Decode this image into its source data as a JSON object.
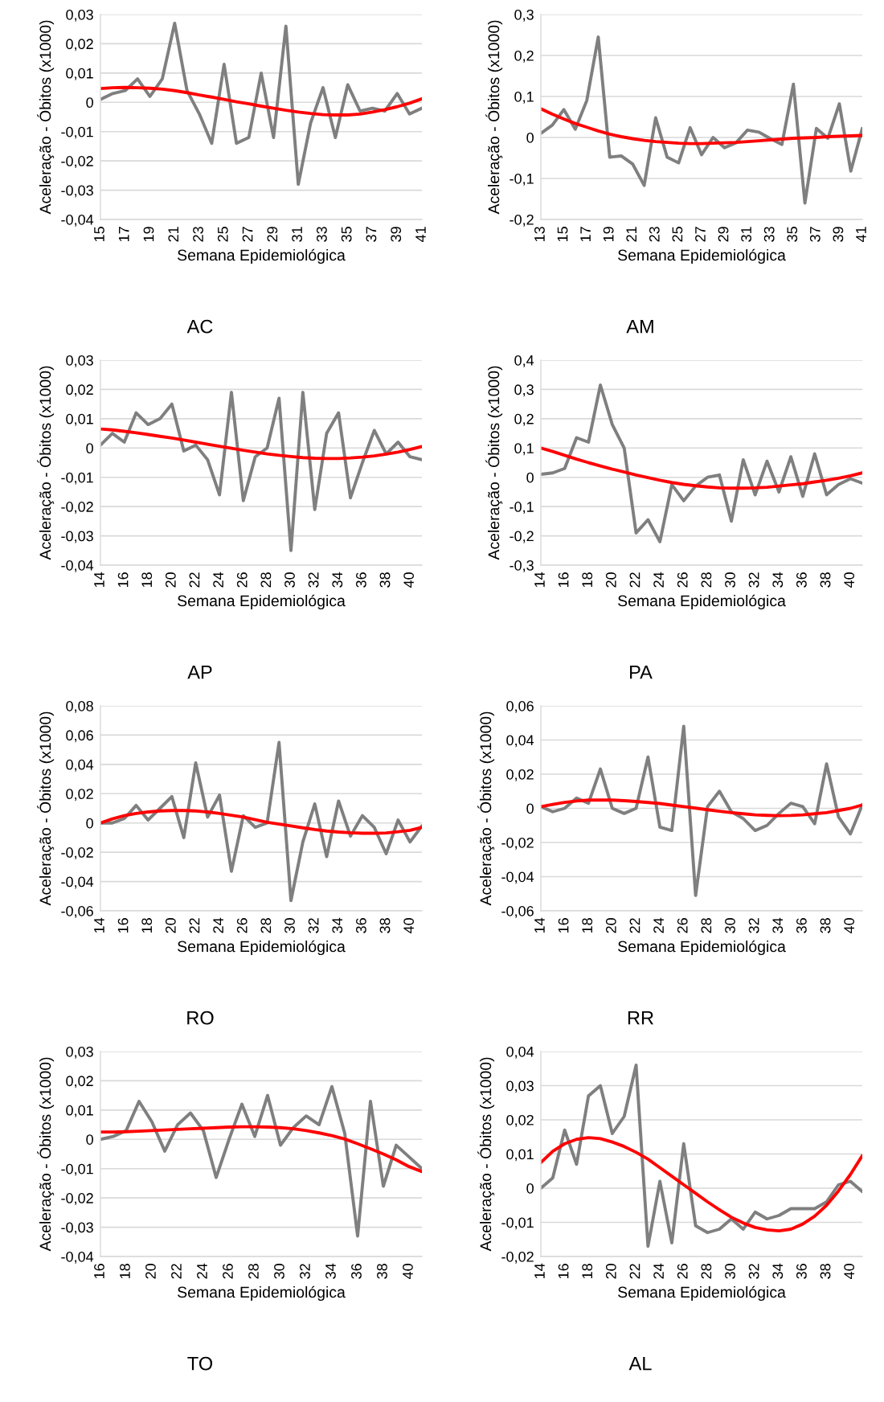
{
  "chart_data": [
    {
      "type": "line",
      "title": "AC",
      "xlabel": "Semana Epidemiológica",
      "ylabel": "Aceleração - Óbitos (x1000)",
      "grid": "y",
      "categories": [
        "15",
        null,
        "17",
        null,
        "19",
        null,
        "21",
        null,
        "23",
        null,
        "25",
        null,
        "27",
        null,
        "29",
        null,
        "31",
        null,
        "33",
        null,
        "35",
        null,
        "37",
        null,
        "39",
        null,
        "41"
      ],
      "ylim": [
        -0.04,
        0.03
      ],
      "yticks": [
        {
          "value": -0.04,
          "label": "-0,04"
        },
        {
          "value": -0.03,
          "label": "-0,03"
        },
        {
          "value": -0.02,
          "label": "-0,02"
        },
        {
          "value": -0.01,
          "label": "-0,01"
        },
        0,
        {
          "value": 0.01,
          "label": "0,01"
        },
        {
          "value": 0.02,
          "label": "0,02"
        },
        {
          "value": 0.03,
          "label": "0,03"
        }
      ],
      "series": [
        {
          "color": "#7f7f7f",
          "values": [
            0.001,
            0.003,
            0.004,
            0.008,
            0.002,
            0.008,
            0.027,
            0.004,
            -0.004,
            -0.014,
            0.013,
            -0.014,
            -0.012,
            0.01,
            -0.012,
            0.026,
            -0.028,
            -0.007,
            0.005,
            -0.012,
            0.006,
            -0.003,
            -0.002,
            -0.003,
            0.003,
            -0.004,
            -0.002
          ]
        },
        {
          "type": "line",
          "color": "#ff0000",
          "values": [
            0.0047,
            0.005,
            0.0051,
            0.005,
            0.0048,
            0.0045,
            0.004,
            0.0033,
            0.0025,
            0.0018,
            0.001,
            0.0002,
            -0.0005,
            -0.0013,
            -0.002,
            -0.0027,
            -0.0033,
            -0.0038,
            -0.0042,
            -0.0043,
            -0.0043,
            -0.004,
            -0.0033,
            -0.0025,
            -0.0015,
            -0.0003,
            0.0012
          ]
        }
      ]
    },
    {
      "type": "line",
      "title": "AM",
      "xlabel": "Semana Epidemiológica",
      "ylabel": "Aceleração - Óbitos (x1000)",
      "grid": "y",
      "categories": [
        "13",
        null,
        "15",
        null,
        "17",
        null,
        "19",
        null,
        "21",
        null,
        "23",
        null,
        "25",
        null,
        "27",
        null,
        "29",
        null,
        "31",
        null,
        "33",
        null,
        "35",
        null,
        "37",
        null,
        "39",
        null,
        "41"
      ],
      "ylim": [
        -0.2,
        0.3
      ],
      "yticks": [
        {
          "value": -0.2,
          "label": "-0,2"
        },
        {
          "value": -0.1,
          "label": "-0,1"
        },
        0,
        {
          "value": 0.1,
          "label": "0,1"
        },
        {
          "value": 0.2,
          "label": "0,2"
        },
        {
          "value": 0.3,
          "label": "0,3"
        }
      ],
      "series": [
        {
          "color": "#7f7f7f",
          "values": [
            0.01,
            0.03,
            0.068,
            0.02,
            0.09,
            0.245,
            -0.048,
            -0.045,
            -0.065,
            -0.117,
            0.048,
            -0.048,
            -0.062,
            0.024,
            -0.042,
            0.0,
            -0.025,
            -0.013,
            0.018,
            0.013,
            -0.003,
            -0.017,
            0.13,
            -0.16,
            0.022,
            -0.002,
            0.082,
            -0.082,
            0.022
          ]
        },
        {
          "type": "line",
          "color": "#ff0000",
          "values": [
            0.07,
            0.057,
            0.045,
            0.034,
            0.025,
            0.016,
            0.008,
            0.002,
            -0.003,
            -0.007,
            -0.01,
            -0.012,
            -0.014,
            -0.015,
            -0.015,
            -0.014,
            -0.013,
            -0.012,
            -0.01,
            -0.008,
            -0.006,
            -0.004,
            -0.002,
            -0.001,
            0.0,
            0.002,
            0.003,
            0.004,
            0.005
          ]
        }
      ]
    },
    {
      "type": "line",
      "title": "AP",
      "xlabel": "Semana Epidemiológica",
      "ylabel": "Aceleração - Óbitos (x1000)",
      "grid": "y",
      "categories": [
        "14",
        null,
        "16",
        null,
        "18",
        null,
        "20",
        null,
        "22",
        null,
        "24",
        null,
        "26",
        null,
        "28",
        null,
        "30",
        null,
        "32",
        null,
        "34",
        null,
        "36",
        null,
        "38",
        null,
        "40",
        null
      ],
      "ylim": [
        -0.04,
        0.03
      ],
      "yticks": [
        {
          "value": -0.04,
          "label": "-0,04"
        },
        {
          "value": -0.03,
          "label": "-0,03"
        },
        {
          "value": -0.02,
          "label": "-0,02"
        },
        {
          "value": -0.01,
          "label": "-0,01"
        },
        0,
        {
          "value": 0.01,
          "label": "0,01"
        },
        {
          "value": 0.02,
          "label": "0,02"
        },
        {
          "value": 0.03,
          "label": "0,03"
        }
      ],
      "series": [
        {
          "color": "#7f7f7f",
          "values": [
            0.001,
            0.005,
            0.002,
            0.012,
            0.008,
            0.01,
            0.015,
            -0.001,
            0.001,
            -0.004,
            -0.016,
            0.019,
            -0.018,
            -0.003,
            0.0,
            0.017,
            -0.035,
            0.019,
            -0.021,
            0.005,
            0.012,
            -0.017,
            -0.005,
            0.006,
            -0.002,
            0.002,
            -0.003,
            -0.004
          ]
        },
        {
          "type": "line",
          "color": "#ff0000",
          "values": [
            0.0065,
            0.0062,
            0.0057,
            0.0052,
            0.0046,
            0.004,
            0.0034,
            0.0027,
            0.002,
            0.0013,
            0.0006,
            -0.0001,
            -0.0008,
            -0.0014,
            -0.002,
            -0.0025,
            -0.0029,
            -0.0033,
            -0.0035,
            -0.0036,
            -0.0036,
            -0.0034,
            -0.0031,
            -0.0027,
            -0.0021,
            -0.0014,
            -0.0005,
            0.0005
          ]
        }
      ]
    },
    {
      "type": "line",
      "title": "PA",
      "xlabel": "Semana Epidemiológica",
      "ylabel": "Aceleração - Óbitos (x1000)",
      "grid": "y",
      "categories": [
        "14",
        null,
        "16",
        null,
        "18",
        null,
        "20",
        null,
        "22",
        null,
        "24",
        null,
        "26",
        null,
        "28",
        null,
        "30",
        null,
        "32",
        null,
        "34",
        null,
        "36",
        null,
        "38",
        null,
        "40",
        null
      ],
      "ylim": [
        -0.3,
        0.4
      ],
      "yticks": [
        {
          "value": -0.3,
          "label": "-0,3"
        },
        {
          "value": -0.2,
          "label": "-0,2"
        },
        {
          "value": -0.1,
          "label": "-0,1"
        },
        0,
        {
          "value": 0.1,
          "label": "0,1"
        },
        {
          "value": 0.2,
          "label": "0,2"
        },
        {
          "value": 0.3,
          "label": "0,3"
        },
        {
          "value": 0.4,
          "label": "0,4"
        }
      ],
      "series": [
        {
          "color": "#7f7f7f",
          "values": [
            0.01,
            0.015,
            0.03,
            0.135,
            0.12,
            0.315,
            0.18,
            0.1,
            -0.19,
            -0.145,
            -0.22,
            -0.025,
            -0.08,
            -0.03,
            0.0,
            0.008,
            -0.15,
            0.06,
            -0.06,
            0.055,
            -0.05,
            0.07,
            -0.065,
            0.08,
            -0.06,
            -0.025,
            -0.005,
            -0.02
          ]
        },
        {
          "type": "line",
          "color": "#ff0000",
          "values": [
            0.1,
            0.088,
            0.075,
            0.062,
            0.05,
            0.039,
            0.028,
            0.018,
            0.008,
            -0.001,
            -0.01,
            -0.018,
            -0.024,
            -0.029,
            -0.033,
            -0.036,
            -0.037,
            -0.037,
            -0.036,
            -0.034,
            -0.03,
            -0.026,
            -0.022,
            -0.016,
            -0.01,
            -0.003,
            0.005,
            0.015
          ]
        }
      ]
    },
    {
      "type": "line",
      "title": "RO",
      "xlabel": "Semana Epidemiológica",
      "ylabel": "Aceleração - Óbitos (x1000)",
      "grid": "y",
      "categories": [
        "14",
        null,
        "16",
        null,
        "18",
        null,
        "20",
        null,
        "22",
        null,
        "24",
        null,
        "26",
        null,
        "28",
        null,
        "30",
        null,
        "32",
        null,
        "34",
        null,
        "36",
        null,
        "38",
        null,
        "40",
        null
      ],
      "ylim": [
        -0.06,
        0.08
      ],
      "yticks": [
        {
          "value": -0.06,
          "label": "-0,06"
        },
        {
          "value": -0.04,
          "label": "-0,04"
        },
        {
          "value": -0.02,
          "label": "-0,02"
        },
        0,
        {
          "value": 0.02,
          "label": "0,02"
        },
        {
          "value": 0.04,
          "label": "0,04"
        },
        {
          "value": 0.06,
          "label": "0,06"
        },
        {
          "value": 0.08,
          "label": "0,08"
        }
      ],
      "series": [
        {
          "color": "#7f7f7f",
          "values": [
            0.0,
            0.0,
            0.003,
            0.012,
            0.002,
            0.01,
            0.018,
            -0.01,
            0.041,
            0.004,
            0.019,
            -0.033,
            0.005,
            -0.003,
            0.0,
            0.055,
            -0.053,
            -0.013,
            0.013,
            -0.023,
            0.015,
            -0.009,
            0.005,
            -0.003,
            -0.021,
            0.002,
            -0.013,
            -0.002
          ]
        },
        {
          "type": "line",
          "color": "#ff0000",
          "values": [
            0.0,
            0.0028,
            0.005,
            0.0065,
            0.0075,
            0.0082,
            0.0085,
            0.0085,
            0.0082,
            0.0075,
            0.0065,
            0.0053,
            0.004,
            0.0022,
            0.0005,
            -0.0008,
            -0.002,
            -0.0033,
            -0.0045,
            -0.0055,
            -0.0062,
            -0.0067,
            -0.007,
            -0.007,
            -0.0068,
            -0.006,
            -0.005,
            -0.003
          ]
        }
      ]
    },
    {
      "type": "line",
      "title": "RR",
      "xlabel": "Semana Epidemiológica",
      "ylabel": "Aceleração - Óbitos (x1000)",
      "grid": "y",
      "categories": [
        "14",
        null,
        "16",
        null,
        "18",
        null,
        "20",
        null,
        "22",
        null,
        "24",
        null,
        "26",
        null,
        "28",
        null,
        "30",
        null,
        "32",
        null,
        "34",
        null,
        "36",
        null,
        "38",
        null,
        "40",
        null
      ],
      "ylim": [
        -0.06,
        0.06
      ],
      "yticks": [
        {
          "value": -0.06,
          "label": "-0,06"
        },
        {
          "value": -0.04,
          "label": "-0,04"
        },
        {
          "value": -0.02,
          "label": "-0,02"
        },
        0,
        {
          "value": 0.02,
          "label": "0,02"
        },
        {
          "value": 0.04,
          "label": "0,04"
        },
        {
          "value": 0.06,
          "label": "0,06"
        }
      ],
      "series": [
        {
          "color": "#7f7f7f",
          "values": [
            0.001,
            -0.002,
            0.0,
            0.006,
            0.003,
            0.023,
            0.0,
            -0.003,
            0.0,
            0.03,
            -0.011,
            -0.013,
            0.048,
            -0.051,
            0.001,
            0.01,
            -0.002,
            -0.006,
            -0.013,
            -0.01,
            -0.003,
            0.003,
            0.001,
            -0.009,
            0.026,
            -0.005,
            -0.015,
            0.002
          ]
        },
        {
          "type": "line",
          "color": "#ff0000",
          "values": [
            0.001,
            0.0023,
            0.0035,
            0.0043,
            0.0048,
            0.0049,
            0.0048,
            0.0045,
            0.004,
            0.0034,
            0.0028,
            0.0019,
            0.001,
            0.0001,
            -0.0008,
            -0.0017,
            -0.0025,
            -0.0032,
            -0.0038,
            -0.0041,
            -0.0043,
            -0.0042,
            -0.0038,
            -0.0032,
            -0.0025,
            -0.0013,
            0.0,
            0.002
          ]
        }
      ]
    },
    {
      "type": "line",
      "title": "TO",
      "xlabel": "Semana Epidemiológica",
      "ylabel": "Aceleração - Óbitos (x1000)",
      "grid": "y",
      "categories": [
        "16",
        null,
        "18",
        null,
        "20",
        null,
        "22",
        null,
        "24",
        null,
        "26",
        null,
        "28",
        null,
        "30",
        null,
        "32",
        null,
        "34",
        null,
        "36",
        null,
        "38",
        null,
        "40",
        null
      ],
      "ylim": [
        -0.04,
        0.03
      ],
      "yticks": [
        {
          "value": -0.04,
          "label": "-0,04"
        },
        {
          "value": -0.03,
          "label": "-0,03"
        },
        {
          "value": -0.02,
          "label": "-0,02"
        },
        {
          "value": -0.01,
          "label": "-0,01"
        },
        0,
        {
          "value": 0.01,
          "label": "0,01"
        },
        {
          "value": 0.02,
          "label": "0,02"
        },
        {
          "value": 0.03,
          "label": "0,03"
        }
      ],
      "series": [
        {
          "color": "#7f7f7f",
          "values": [
            0.0,
            0.001,
            0.003,
            0.013,
            0.006,
            -0.004,
            0.005,
            0.009,
            0.003,
            -0.013,
            0.0,
            0.012,
            0.001,
            0.015,
            -0.002,
            0.004,
            0.008,
            0.005,
            0.018,
            0.002,
            -0.033,
            0.013,
            -0.016,
            -0.002,
            -0.006,
            -0.01
          ]
        },
        {
          "type": "line",
          "color": "#ff0000",
          "values": [
            0.0025,
            0.0025,
            0.0026,
            0.0028,
            0.003,
            0.0032,
            0.0034,
            0.0036,
            0.0038,
            0.004,
            0.0042,
            0.0043,
            0.0043,
            0.0042,
            0.004,
            0.0036,
            0.003,
            0.0022,
            0.0013,
            0.0001,
            -0.0015,
            -0.0032,
            -0.005,
            -0.007,
            -0.0093,
            -0.011
          ]
        }
      ]
    },
    {
      "type": "line",
      "title": "AL",
      "xlabel": "Semana Epidemiológica",
      "ylabel": "Aceleração - Óbitos (x1000)",
      "grid": "y",
      "categories": [
        "14",
        null,
        "16",
        null,
        "18",
        null,
        "20",
        null,
        "22",
        null,
        "24",
        null,
        "26",
        null,
        "28",
        null,
        "30",
        null,
        "32",
        null,
        "34",
        null,
        "36",
        null,
        "38",
        null,
        "40",
        null
      ],
      "ylim": [
        -0.02,
        0.04
      ],
      "yticks": [
        {
          "value": -0.02,
          "label": "-0,02"
        },
        {
          "value": -0.01,
          "label": "-0,01"
        },
        0,
        {
          "value": 0.01,
          "label": "0,01"
        },
        {
          "value": 0.02,
          "label": "0,02"
        },
        {
          "value": 0.03,
          "label": "0,03"
        },
        {
          "value": 0.04,
          "label": "0,04"
        }
      ],
      "series": [
        {
          "color": "#7f7f7f",
          "values": [
            0.0,
            0.003,
            0.017,
            0.007,
            0.027,
            0.03,
            0.016,
            0.021,
            0.036,
            -0.017,
            0.002,
            -0.016,
            0.013,
            -0.011,
            -0.013,
            -0.012,
            -0.009,
            -0.012,
            -0.007,
            -0.009,
            -0.008,
            -0.006,
            -0.006,
            -0.006,
            -0.004,
            0.001,
            0.002,
            -0.001
          ]
        },
        {
          "type": "line",
          "color": "#ff0000",
          "values": [
            0.0075,
            0.0108,
            0.013,
            0.0143,
            0.0148,
            0.0145,
            0.0135,
            0.0122,
            0.0105,
            0.0085,
            0.006,
            0.0035,
            0.001,
            -0.0015,
            -0.004,
            -0.0063,
            -0.0085,
            -0.0102,
            -0.0115,
            -0.0122,
            -0.0125,
            -0.012,
            -0.0105,
            -0.0082,
            -0.005,
            -0.0008,
            0.004,
            0.0095
          ]
        }
      ]
    }
  ]
}
